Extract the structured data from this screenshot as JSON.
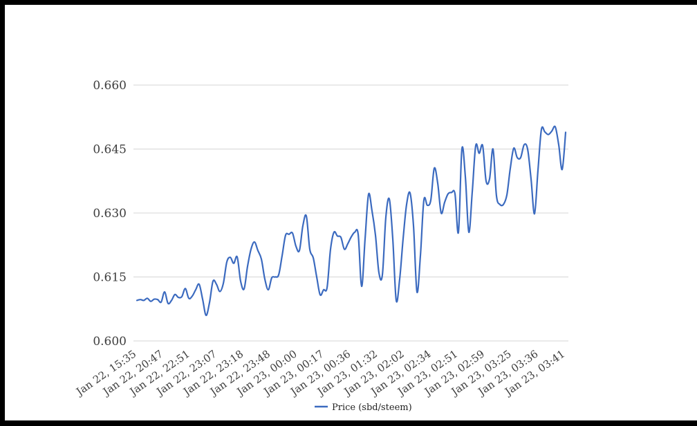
{
  "frame": {
    "background": "#ffffff",
    "border_color": "#000000"
  },
  "chart_data": {
    "type": "line",
    "title": "",
    "xlabel": "",
    "ylabel": "",
    "ylim": [
      0.6,
      0.66
    ],
    "grid": true,
    "legend_position": "bottom",
    "gridline_color": "#d4d4d4",
    "axis_text_color": "#3d3d3d",
    "y_tick_labels": [
      "0.600",
      "0.615",
      "0.630",
      "0.645",
      "0.660"
    ],
    "y_ticks": [
      0.6,
      0.615,
      0.63,
      0.645,
      0.66
    ],
    "x_tick_labels": [
      "Jan 22, 15:35",
      "Jan 22, 20:47",
      "Jan 22, 22:51",
      "Jan 22, 23:07",
      "Jan 22, 23:18",
      "Jan 22, 23:48",
      "Jan 23, 00:00",
      "Jan 23, 00:17",
      "Jan 23, 00:36",
      "Jan 23, 01:32",
      "Jan 23, 02:02",
      "Jan 23, 02:34",
      "Jan 23, 02:51",
      "Jan 23, 02:59",
      "Jan 23, 03:25",
      "Jan 23, 03:36",
      "Jan 23, 03:41"
    ],
    "series": [
      {
        "name": "Price (sbd/steem)",
        "color": "#3b6abf",
        "values": [
          0.6095,
          0.6097,
          0.6095,
          0.61,
          0.6093,
          0.6098,
          0.6097,
          0.6091,
          0.6115,
          0.6088,
          0.6095,
          0.6109,
          0.6102,
          0.6104,
          0.6123,
          0.61,
          0.6105,
          0.612,
          0.6133,
          0.6098,
          0.606,
          0.609,
          0.614,
          0.6133,
          0.6116,
          0.6135,
          0.6185,
          0.6196,
          0.6182,
          0.6197,
          0.614,
          0.6122,
          0.6175,
          0.6215,
          0.6232,
          0.6212,
          0.6192,
          0.6145,
          0.612,
          0.6148,
          0.615,
          0.6155,
          0.62,
          0.6248,
          0.625,
          0.6253,
          0.6222,
          0.6212,
          0.627,
          0.6293,
          0.6215,
          0.6195,
          0.615,
          0.6108,
          0.612,
          0.6125,
          0.6215,
          0.6255,
          0.6246,
          0.6243,
          0.6215,
          0.6228,
          0.6244,
          0.6255,
          0.625,
          0.6128,
          0.624,
          0.6344,
          0.6305,
          0.6248,
          0.616,
          0.6155,
          0.629,
          0.6333,
          0.624,
          0.6095,
          0.6145,
          0.624,
          0.632,
          0.6347,
          0.627,
          0.6115,
          0.62,
          0.633,
          0.6318,
          0.633,
          0.6405,
          0.637,
          0.63,
          0.6325,
          0.6345,
          0.6348,
          0.6345,
          0.6255,
          0.645,
          0.6385,
          0.6255,
          0.635,
          0.6458,
          0.644,
          0.6458,
          0.6375,
          0.638,
          0.645,
          0.634,
          0.632,
          0.632,
          0.6342,
          0.6405,
          0.6452,
          0.643,
          0.643,
          0.646,
          0.645,
          0.638,
          0.6298,
          0.64,
          0.6496,
          0.649,
          0.6484,
          0.6492,
          0.6502,
          0.646,
          0.6402,
          0.6489
        ]
      }
    ]
  }
}
